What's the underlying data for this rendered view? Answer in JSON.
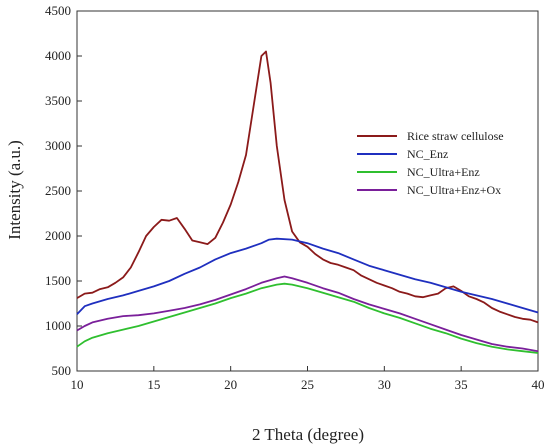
{
  "chart_data": {
    "type": "line",
    "title": "",
    "xlabel": "2 Theta (degree)",
    "ylabel": "Intensity (a.u.)",
    "xlim": [
      10,
      40
    ],
    "ylim": [
      500,
      4500
    ],
    "xticks": [
      10,
      15,
      20,
      25,
      30,
      35,
      40
    ],
    "yticks": [
      500,
      1000,
      1500,
      2000,
      2500,
      3000,
      3500,
      4000,
      4500
    ],
    "grid": false,
    "legend_position": "right",
    "series": [
      {
        "name": "Rice straw cellulose",
        "color": "#8b1a1a",
        "x": [
          10,
          10.5,
          11,
          11.5,
          12,
          12.5,
          13,
          13.5,
          14,
          14.5,
          15,
          15.5,
          16,
          16.5,
          17,
          17.5,
          18,
          18.5,
          19,
          19.5,
          20,
          20.5,
          21,
          21.5,
          22,
          22.3,
          22.6,
          23,
          23.5,
          24,
          24.5,
          25,
          25.5,
          26,
          26.5,
          27,
          27.5,
          28,
          28.5,
          29,
          29.5,
          30,
          30.5,
          31,
          31.5,
          32,
          32.5,
          33,
          33.5,
          34,
          34.5,
          35,
          35.5,
          36,
          36.5,
          37,
          37.5,
          38,
          38.5,
          39,
          39.5,
          40
        ],
        "y": [
          1310,
          1360,
          1370,
          1410,
          1430,
          1480,
          1540,
          1650,
          1820,
          2000,
          2100,
          2180,
          2170,
          2200,
          2080,
          1950,
          1930,
          1910,
          1980,
          2150,
          2350,
          2600,
          2900,
          3450,
          4000,
          4050,
          3700,
          3000,
          2400,
          2050,
          1930,
          1880,
          1800,
          1740,
          1700,
          1680,
          1650,
          1620,
          1560,
          1520,
          1480,
          1450,
          1420,
          1380,
          1360,
          1330,
          1320,
          1340,
          1360,
          1420,
          1440,
          1390,
          1330,
          1300,
          1260,
          1200,
          1160,
          1130,
          1100,
          1080,
          1070,
          1040
        ]
      },
      {
        "name": "NC_Enz",
        "color": "#1f2fbf",
        "x": [
          10,
          10.5,
          11,
          12,
          13,
          14,
          15,
          16,
          17,
          18,
          19,
          20,
          21,
          22,
          22.5,
          23,
          24,
          25,
          26,
          27,
          28,
          29,
          30,
          31,
          32,
          33,
          34,
          35,
          36,
          37,
          38,
          39,
          40
        ],
        "y": [
          1130,
          1220,
          1250,
          1300,
          1340,
          1390,
          1440,
          1500,
          1580,
          1650,
          1740,
          1810,
          1860,
          1920,
          1960,
          1970,
          1960,
          1920,
          1860,
          1810,
          1740,
          1670,
          1620,
          1570,
          1520,
          1480,
          1430,
          1380,
          1340,
          1300,
          1250,
          1200,
          1150
        ]
      },
      {
        "name": "NC_Ultra+Enz",
        "color": "#2fbf2f",
        "x": [
          10,
          10.5,
          11,
          12,
          13,
          14,
          15,
          16,
          17,
          18,
          19,
          20,
          21,
          22,
          23,
          23.5,
          24,
          25,
          26,
          27,
          28,
          29,
          30,
          31,
          32,
          33,
          34,
          35,
          36,
          37,
          38,
          39,
          40
        ],
        "y": [
          770,
          830,
          870,
          920,
          960,
          1000,
          1050,
          1100,
          1150,
          1200,
          1250,
          1310,
          1360,
          1420,
          1460,
          1470,
          1460,
          1420,
          1370,
          1320,
          1270,
          1200,
          1140,
          1090,
          1030,
          970,
          920,
          860,
          810,
          770,
          740,
          720,
          700
        ]
      },
      {
        "name": "NC_Ultra+Enz+Ox",
        "color": "#7a1f9a",
        "x": [
          10,
          10.5,
          11,
          12,
          13,
          14,
          15,
          16,
          17,
          18,
          19,
          20,
          21,
          22,
          23,
          23.5,
          24,
          25,
          26,
          27,
          28,
          29,
          30,
          31,
          32,
          33,
          34,
          35,
          36,
          37,
          38,
          39,
          40
        ],
        "y": [
          950,
          1000,
          1040,
          1080,
          1110,
          1120,
          1140,
          1170,
          1200,
          1240,
          1290,
          1350,
          1410,
          1480,
          1530,
          1550,
          1530,
          1480,
          1420,
          1370,
          1300,
          1240,
          1190,
          1140,
          1080,
          1020,
          960,
          900,
          850,
          800,
          770,
          750,
          720
        ]
      }
    ]
  }
}
